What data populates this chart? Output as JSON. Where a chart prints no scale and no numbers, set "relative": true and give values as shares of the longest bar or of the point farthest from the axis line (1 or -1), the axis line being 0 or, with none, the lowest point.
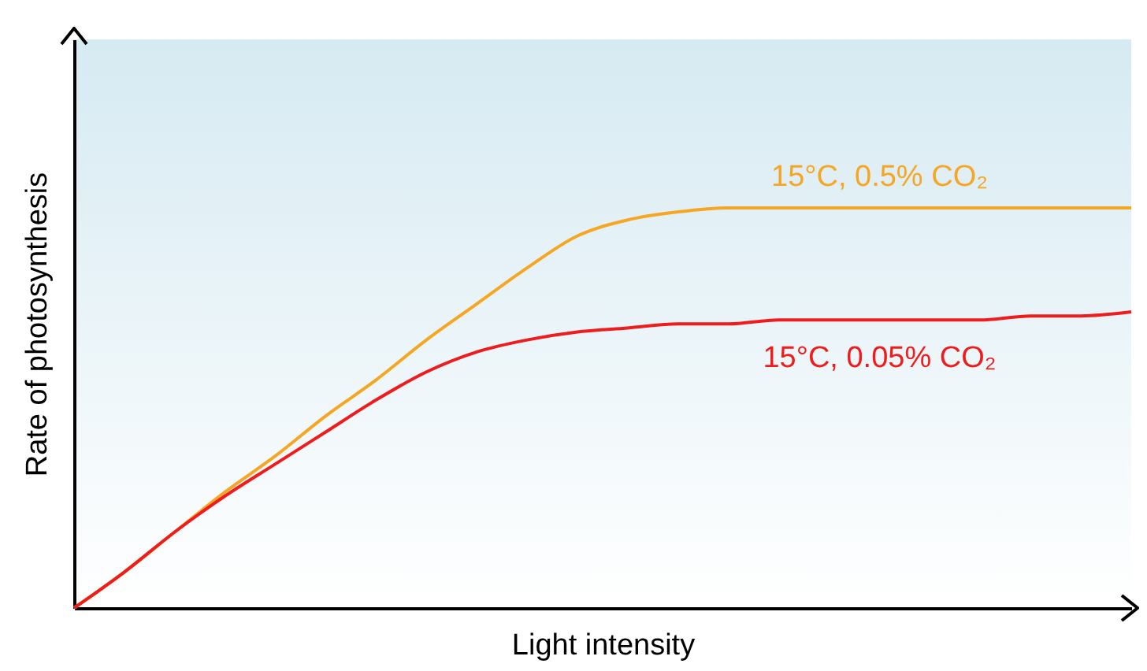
{
  "chart_data": {
    "type": "line",
    "relative": true,
    "xlabel": "Light intensity",
    "ylabel": "Rate of photosynthesis",
    "categories": [
      null,
      null,
      null,
      null,
      null,
      null,
      null,
      null,
      null,
      null,
      null,
      null,
      null,
      null,
      null,
      null,
      null,
      null,
      null,
      null,
      null,
      null
    ],
    "series": [
      {
        "name": "15°C, 0.5% CO₂",
        "color": "#f5a623",
        "values": [
          0,
          0.09,
          0.19,
          0.29,
          0.38,
          0.48,
          0.57,
          0.67,
          0.76,
          0.85,
          0.93,
          0.97,
          0.99,
          1,
          1,
          1,
          1,
          1,
          1,
          1,
          1,
          1
        ]
      },
      {
        "name": "15°C, 0.05% CO₂",
        "color": "#ee1c1c",
        "values": [
          0,
          0.09,
          0.19,
          0.28,
          0.36,
          0.44,
          0.52,
          0.59,
          0.64,
          0.67,
          0.69,
          0.7,
          0.71,
          0.71,
          0.72,
          0.72,
          0.72,
          0.72,
          0.72,
          0.73,
          0.73,
          0.74
        ]
      }
    ],
    "grid": false,
    "marker": "none",
    "line_style": "solid"
  }
}
